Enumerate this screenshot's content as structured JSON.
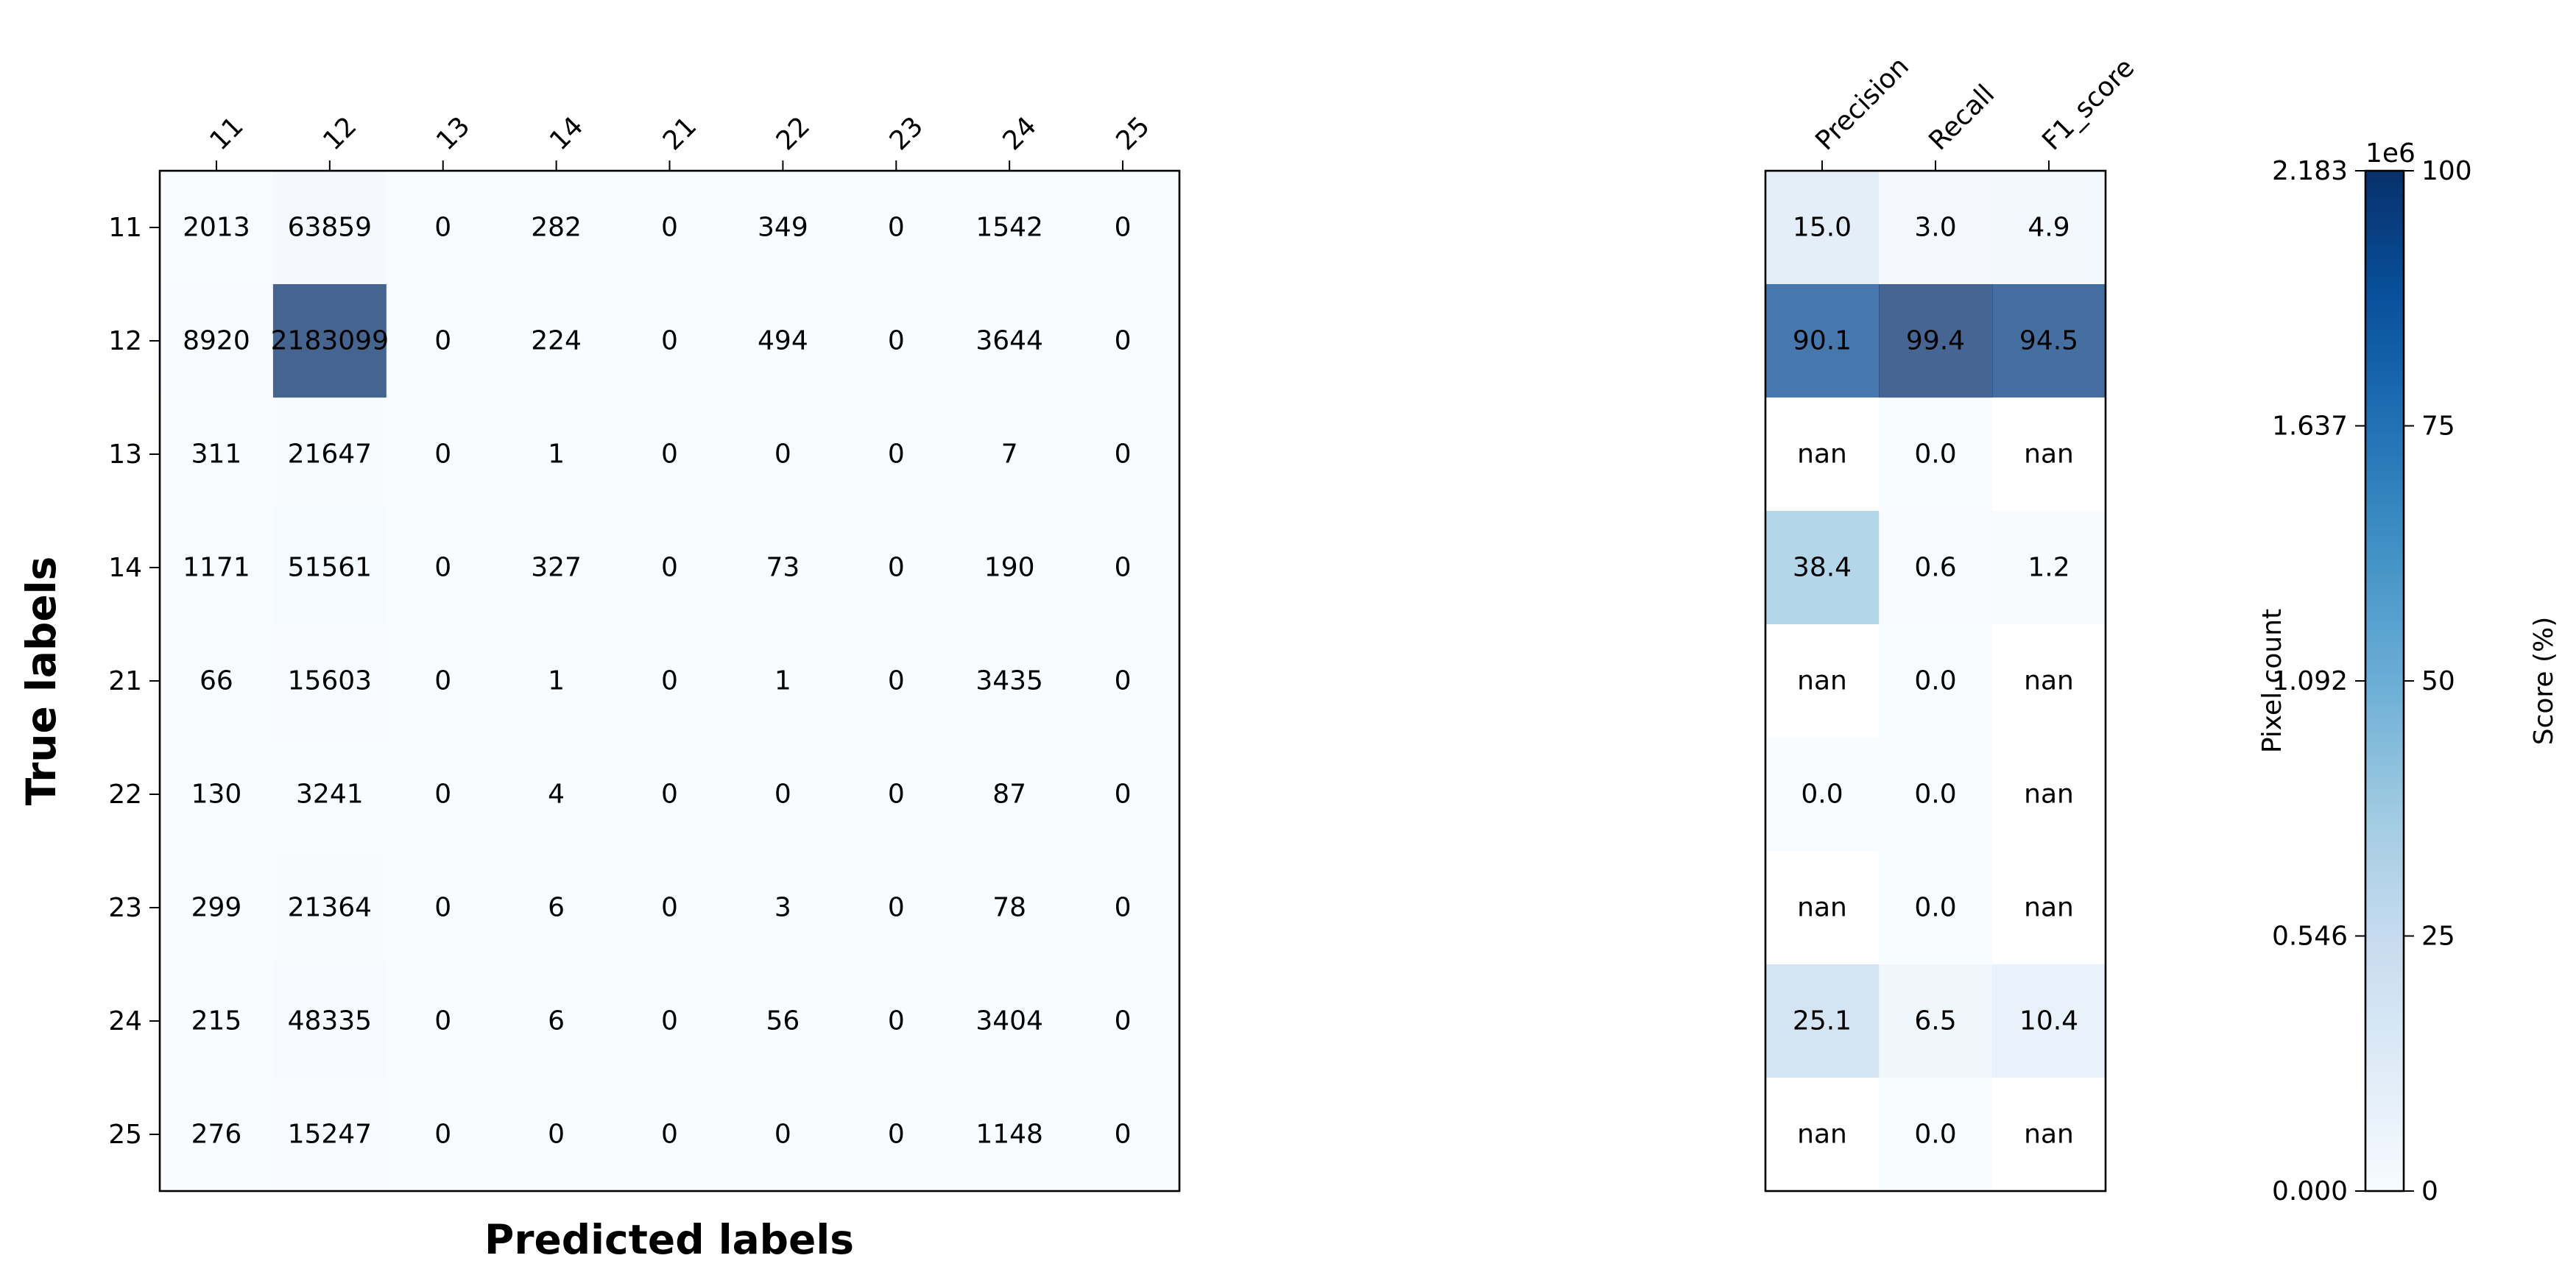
{
  "chart_data": [
    {
      "type": "heatmap",
      "title": "",
      "xlabel": "Predicted labels",
      "ylabel": "True labels",
      "x_categories": [
        "11",
        "12",
        "13",
        "14",
        "21",
        "22",
        "23",
        "24",
        "25"
      ],
      "y_categories": [
        "11",
        "12",
        "13",
        "14",
        "21",
        "22",
        "23",
        "24",
        "25"
      ],
      "values": [
        [
          2013,
          63859,
          0,
          282,
          0,
          349,
          0,
          1542,
          0
        ],
        [
          8920,
          2183099,
          0,
          224,
          0,
          494,
          0,
          3644,
          0
        ],
        [
          311,
          21647,
          0,
          1,
          0,
          0,
          0,
          7,
          0
        ],
        [
          1171,
          51561,
          0,
          327,
          0,
          73,
          0,
          190,
          0
        ],
        [
          66,
          15603,
          0,
          1,
          0,
          1,
          0,
          3435,
          0
        ],
        [
          130,
          3241,
          0,
          4,
          0,
          0,
          0,
          87,
          0
        ],
        [
          299,
          21364,
          0,
          6,
          0,
          3,
          0,
          78,
          0
        ],
        [
          215,
          48335,
          0,
          6,
          0,
          56,
          0,
          3404,
          0
        ],
        [
          276,
          15247,
          0,
          0,
          0,
          0,
          0,
          1148,
          0
        ]
      ],
      "colormap": "Blues",
      "color_range": [
        0,
        2183099
      ],
      "colorbar": {
        "label": "Pixel count",
        "offset_text": "1e6",
        "ticks": [
          "0.000",
          "0.546",
          "1.092",
          "1.637",
          "2.183"
        ]
      }
    },
    {
      "type": "heatmap",
      "title": "",
      "x_categories": [
        "Precision",
        "Recall",
        "F1_score"
      ],
      "y_categories": [
        "11",
        "12",
        "13",
        "14",
        "21",
        "22",
        "23",
        "24",
        "25"
      ],
      "values": [
        [
          "15.0",
          "3.0",
          "4.9"
        ],
        [
          "90.1",
          "99.4",
          "94.5"
        ],
        [
          "nan",
          "0.0",
          "nan"
        ],
        [
          "38.4",
          "0.6",
          "1.2"
        ],
        [
          "nan",
          "0.0",
          "nan"
        ],
        [
          "0.0",
          "0.0",
          "nan"
        ],
        [
          "nan",
          "0.0",
          "nan"
        ],
        [
          "25.1",
          "6.5",
          "10.4"
        ],
        [
          "nan",
          "0.0",
          "nan"
        ]
      ],
      "colormap": "Blues",
      "color_range": [
        0,
        100
      ],
      "colorbar": {
        "label": "Score (%)",
        "ticks": [
          "0",
          "25",
          "50",
          "75",
          "100"
        ]
      }
    }
  ]
}
